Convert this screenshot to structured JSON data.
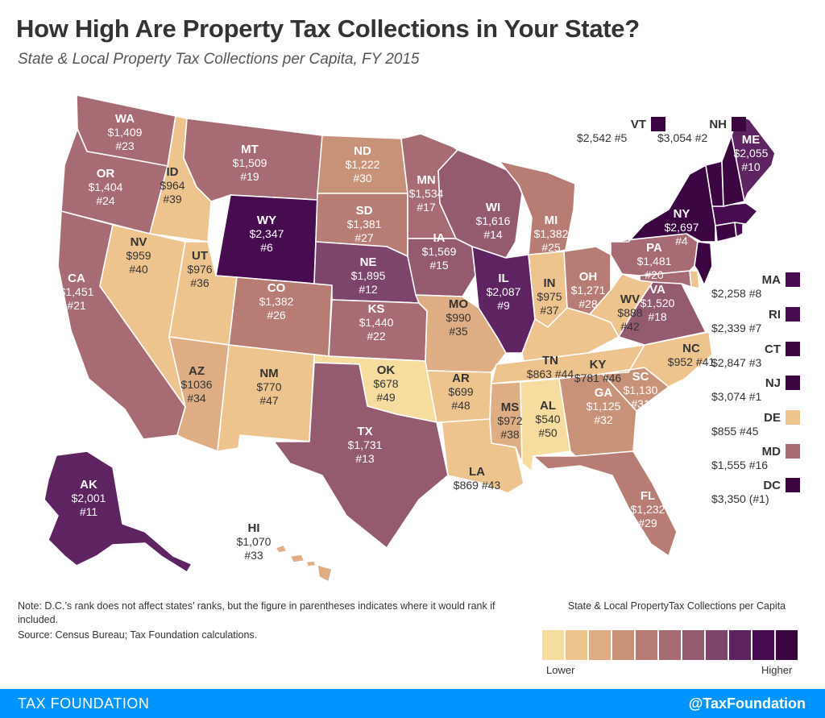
{
  "title": "How High Are Property Tax Collections in Your State?",
  "subtitle": "State & Local Property Tax Collections per Capita, FY 2015",
  "palette": [
    "#f7dc9f",
    "#eec48e",
    "#dfad84",
    "#c89279",
    "#b77c74",
    "#a66b73",
    "#945a70",
    "#7d456c",
    "#5e2461",
    "#470c4f",
    "#3a0540"
  ],
  "states": {
    "WA": {
      "value": "$1,409",
      "rank": "#23",
      "level": 5
    },
    "OR": {
      "value": "$1,404",
      "rank": "#24",
      "level": 5
    },
    "CA": {
      "value": "$1,451",
      "rank": "#21",
      "level": 5
    },
    "ID": {
      "value": "$964",
      "rank": "#39",
      "level": 1
    },
    "NV": {
      "value": "$959",
      "rank": "#40",
      "level": 1
    },
    "MT": {
      "value": "$1,509",
      "rank": "#19",
      "level": 5
    },
    "WY": {
      "value": "$2,347",
      "rank": "#6",
      "level": 9
    },
    "UT": {
      "value": "$976",
      "rank": "#36",
      "level": 1
    },
    "AZ": {
      "value": "$1036",
      "rank": "#34",
      "level": 2
    },
    "CO": {
      "value": "$1,382",
      "rank": "#26",
      "level": 4
    },
    "NM": {
      "value": "$770",
      "rank": "#47",
      "level": 1
    },
    "ND": {
      "value": "$1,222",
      "rank": "#30",
      "level": 3
    },
    "SD": {
      "value": "$1,381",
      "rank": "#27",
      "level": 4
    },
    "NE": {
      "value": "$1,895",
      "rank": "#12",
      "level": 7
    },
    "KS": {
      "value": "$1,440",
      "rank": "#22",
      "level": 5
    },
    "OK": {
      "value": "$678",
      "rank": "#49",
      "level": 0
    },
    "TX": {
      "value": "$1,731",
      "rank": "#13",
      "level": 6
    },
    "MN": {
      "value": "$1,534",
      "rank": "#17",
      "level": 5
    },
    "IA": {
      "value": "$1,569",
      "rank": "#15",
      "level": 6
    },
    "MO": {
      "value": "$990",
      "rank": "#35",
      "level": 2
    },
    "AR": {
      "value": "$699",
      "rank": "#48",
      "level": 1
    },
    "LA": {
      "value": "$869",
      "rank": "#43",
      "level": 1
    },
    "WI": {
      "value": "$1,616",
      "rank": "#14",
      "level": 6
    },
    "IL": {
      "value": "$2,087",
      "rank": "#9",
      "level": 8
    },
    "MI": {
      "value": "$1,382",
      "rank": "#25",
      "level": 4
    },
    "IN": {
      "value": "$975",
      "rank": "#37",
      "level": 1
    },
    "OH": {
      "value": "$1,271",
      "rank": "#28",
      "level": 4
    },
    "KY": {
      "value": "$781",
      "rank": "#46",
      "level": 1
    },
    "TN": {
      "value": "$863",
      "rank": "#44",
      "level": 1
    },
    "MS": {
      "value": "$972",
      "rank": "#38",
      "level": 2
    },
    "AL": {
      "value": "$540",
      "rank": "#50",
      "level": 0
    },
    "GA": {
      "value": "$1,125",
      "rank": "#32",
      "level": 3
    },
    "FL": {
      "value": "$1,232",
      "rank": "#29",
      "level": 4
    },
    "SC": {
      "value": "$1,130",
      "rank": "#31",
      "level": 3
    },
    "NC": {
      "value": "$952",
      "rank": "#41",
      "level": 1
    },
    "VA": {
      "value": "$1,520",
      "rank": "#18",
      "level": 6
    },
    "WV": {
      "value": "$888",
      "rank": "#42",
      "level": 1
    },
    "PA": {
      "value": "$1,481",
      "rank": "#20",
      "level": 5
    },
    "NY": {
      "value": "$2,697",
      "rank": "#4",
      "level": 10
    },
    "ME": {
      "value": "$2,055",
      "rank": "#10",
      "level": 8
    },
    "AK": {
      "value": "$2,001",
      "rank": "#11",
      "level": 8
    },
    "HI": {
      "value": "$1,070",
      "rank": "#33",
      "level": 2
    },
    "VT": {
      "value": "$2,542",
      "rank": "#5",
      "level": 10
    },
    "NH": {
      "value": "$3,054",
      "rank": "#2",
      "level": 10
    },
    "MA": {
      "value": "$2,258",
      "rank": "#8",
      "level": 9
    },
    "RI": {
      "value": "$2,339",
      "rank": "#7",
      "level": 9
    },
    "CT": {
      "value": "$2,847",
      "rank": "#3",
      "level": 10
    },
    "NJ": {
      "value": "$3,074",
      "rank": "#1",
      "level": 10
    },
    "DE": {
      "value": "$855",
      "rank": "#45",
      "level": 1
    },
    "MD": {
      "value": "$1,555",
      "rank": "#16",
      "level": 5
    },
    "DC": {
      "value": "$3,350",
      "rank": "(#1)",
      "level": 10
    }
  },
  "note": "Note: D.C.’s rank does not affect states’ ranks, but the figure in parentheses indicates where it would rank if included.",
  "source": "Source: Census Bureau; Tax Foundation calculations.",
  "legend": {
    "title": "State & Local PropertyTax Collections per Capita",
    "lower": "Lower",
    "higher": "Higher"
  },
  "footer": {
    "left": "TAX FOUNDATION",
    "right": "@TaxFoundation"
  }
}
